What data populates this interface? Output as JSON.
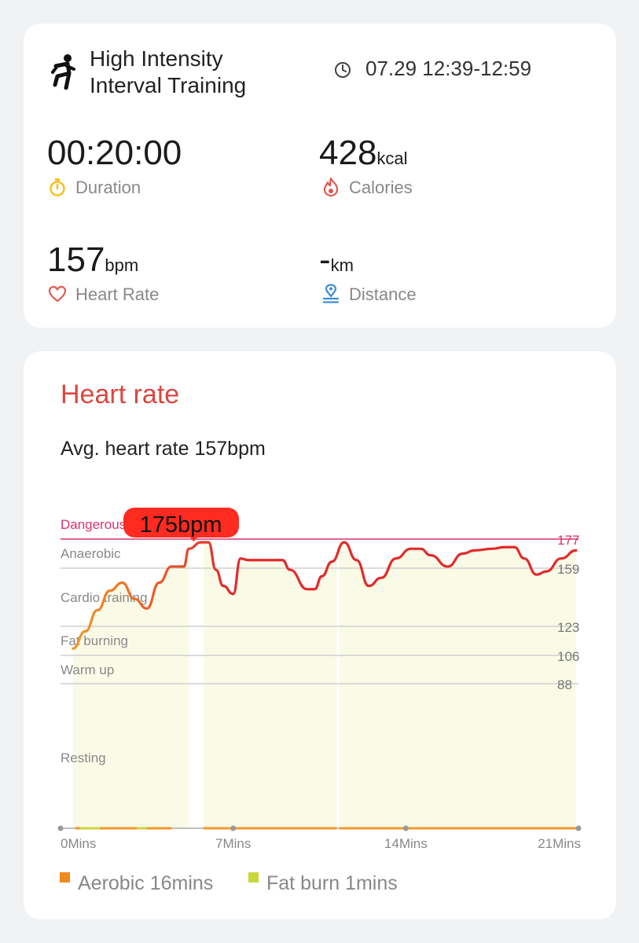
{
  "summary": {
    "workout_title_line1": "High Intensity",
    "workout_title_line2": "Interval Training",
    "workout_time": "07.29 12:39-12:59",
    "duration": {
      "value": "00:20:00",
      "label": "Duration"
    },
    "calories": {
      "value": "428",
      "unit": "kcal",
      "label": "Calories"
    },
    "heart_rate": {
      "value": "157",
      "unit": "bpm",
      "label": "Heart Rate"
    },
    "distance": {
      "value": "-",
      "unit": "km",
      "label": "Distance"
    },
    "icons": {
      "workout": "running-person-icon",
      "time": "clock-icon",
      "duration": "stopwatch-icon",
      "calories": "flame-icon",
      "heart_rate": "heart-icon",
      "distance": "location-pin-icon"
    },
    "colors": {
      "duration_icon": "#f2c21b",
      "calories_icon": "#e05a4f",
      "heart_icon": "#e05a4f",
      "distance_icon": "#3d8fd4"
    }
  },
  "heart_rate": {
    "title": "Heart rate",
    "avg_text": "Avg. heart rate 157bpm",
    "legend": [
      {
        "label": "Aerobic 16mins",
        "color": "#f08a1d"
      },
      {
        "label": "Fat burn 1mins",
        "color": "#c9d73a"
      }
    ]
  },
  "chart_data": {
    "type": "line",
    "title": "",
    "xlabel": "",
    "ylabel": "",
    "x_ticks": [
      "0Mins",
      "7Mins",
      "14Mins",
      "21Mins"
    ],
    "xlim": [
      0,
      21
    ],
    "ylim": [
      0,
      177
    ],
    "zones": [
      {
        "name": "Dangerous",
        "threshold": 177
      },
      {
        "name": "Anaerobic",
        "threshold": 159
      },
      {
        "name": "Cardio training",
        "threshold": 123
      },
      {
        "name": "Fat burning",
        "threshold": 106
      },
      {
        "name": "Warm up",
        "threshold": 88
      },
      {
        "name": "Resting",
        "threshold": 0
      }
    ],
    "y_ticks": [
      177,
      159,
      123,
      106,
      88
    ],
    "max_marker": {
      "label": "175bpm",
      "x": 5.4,
      "y": 175
    },
    "series": [
      {
        "x": [
          0.5,
          1.0,
          1.5,
          2.0,
          2.5,
          3.0,
          3.5,
          4.0,
          4.5,
          5.0,
          5.2,
          5.7,
          6.0,
          6.3,
          6.6,
          7.0,
          7.3,
          7.6,
          8.0,
          9.0,
          9.3,
          10.0,
          10.3,
          10.6,
          11.0,
          11.5,
          12.0,
          12.5,
          13.0,
          13.6,
          14.2,
          14.6,
          15.0,
          15.7,
          16.3,
          16.8,
          17.5,
          18.0,
          18.4,
          18.8,
          19.3,
          19.7,
          20.3,
          20.9
        ],
        "values": [
          110,
          120,
          133,
          145,
          150,
          140,
          134,
          150,
          160,
          160,
          171,
          175,
          175,
          158,
          148,
          143,
          165,
          164,
          164,
          164,
          158,
          146,
          146,
          154,
          163,
          175,
          164,
          148,
          153,
          165,
          171,
          171,
          167,
          160,
          168,
          170,
          171,
          172,
          172,
          165,
          155,
          157,
          165,
          170
        ]
      }
    ],
    "colors": {
      "line_start": "#f19a2a",
      "line_end": "#e12b2b",
      "fill": "#fafbe6",
      "dangerous_line": "#d9326e",
      "grid": "#cfcfcf",
      "marker": "#ff2a20"
    }
  }
}
